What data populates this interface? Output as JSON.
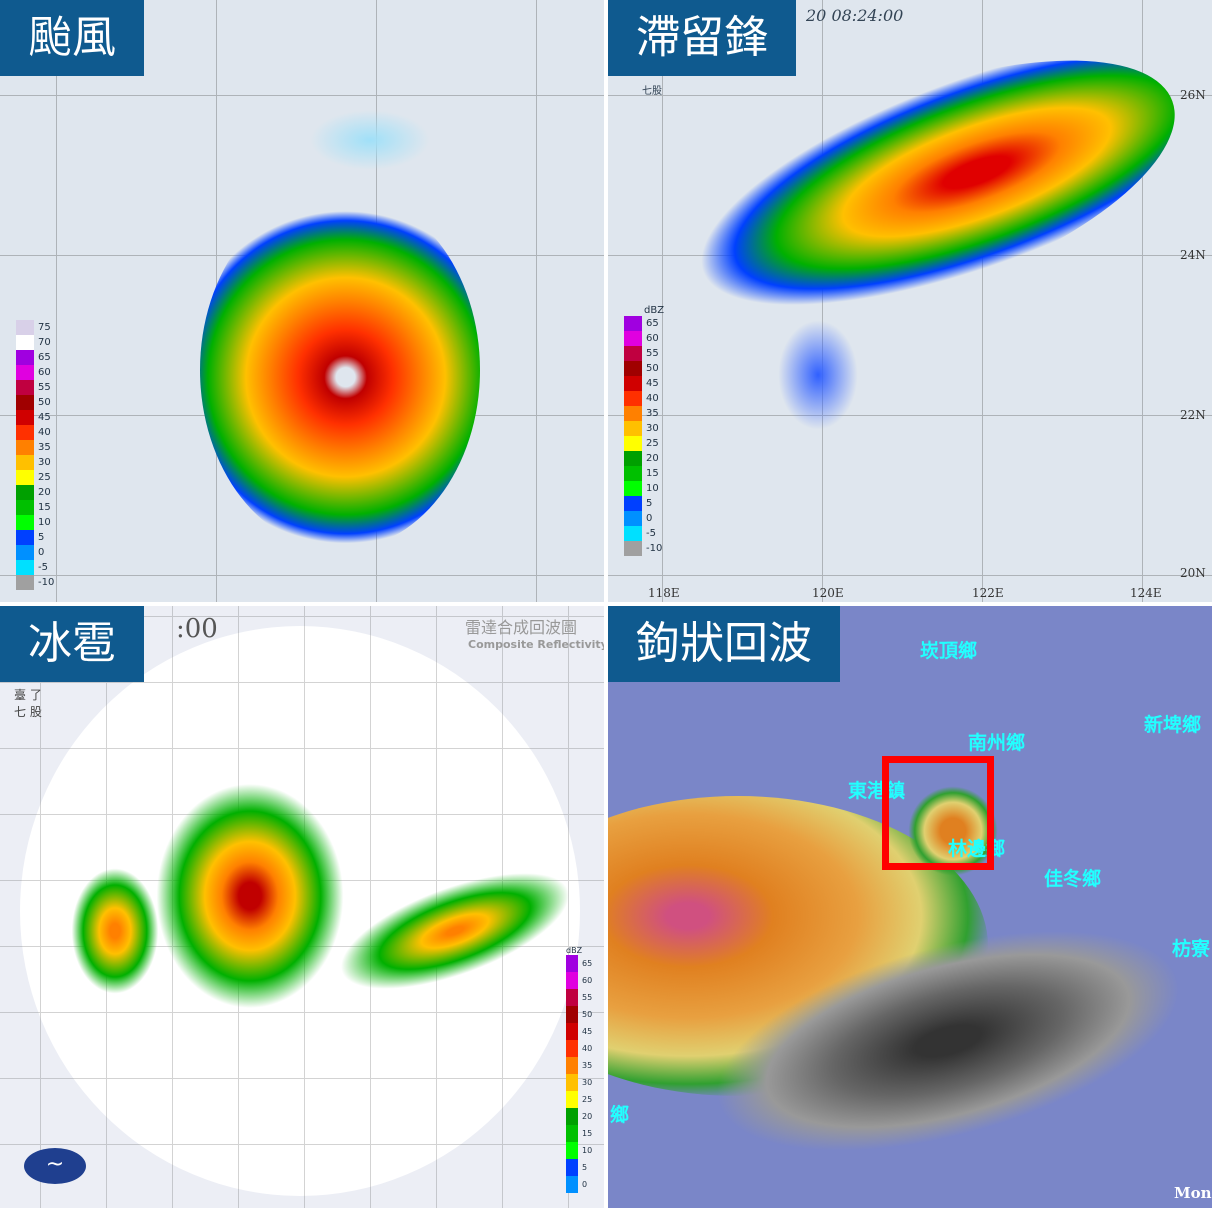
{
  "panels": [
    {
      "title": "颱風",
      "legend": [
        "75",
        "70",
        "65",
        "60",
        "55",
        "50",
        "45",
        "40",
        "35",
        "30",
        "25",
        "20",
        "15",
        "10",
        "5",
        "0",
        "-5",
        "-10"
      ]
    },
    {
      "title": "滯留鋒",
      "timestamp": "20 08:24:00",
      "station": "七股",
      "legend_unit": "dBZ",
      "legend": [
        "65",
        "60",
        "55",
        "50",
        "45",
        "40",
        "35",
        "30",
        "25",
        "20",
        "15",
        "10",
        "5",
        "0",
        "-5",
        "-10"
      ],
      "x_ticks": [
        "118E",
        "120E",
        "122E",
        "124E"
      ],
      "y_ticks": [
        "26N",
        "24N",
        "22N",
        "20N"
      ]
    },
    {
      "title": "冰雹",
      "timestamp_fragment": ":00",
      "product_zh": "雷達合成回波圖",
      "product_en": "Composite Reflectivity",
      "stations": [
        "臺 了",
        "七 股"
      ],
      "legend_unit": "dBZ",
      "legend": [
        "65",
        "60",
        "55",
        "50",
        "45",
        "40",
        "35",
        "30",
        "25",
        "20",
        "15",
        "10",
        "5",
        "0"
      ]
    },
    {
      "title": "鉤狀回波",
      "towns": [
        "崁頂鄉",
        "南州鄉",
        "新埤鄉",
        "東港鎮",
        "林邊鄉",
        "佳冬鄉",
        "枋寮",
        "鄉"
      ],
      "corner_text": "Mon"
    }
  ],
  "colors": {
    "title_bg": "#0f5a8f",
    "highlight_box": "#ff0000"
  },
  "legend_colors": [
    "#d8d0e8",
    "#ffffff",
    "#a000e0",
    "#e000e0",
    "#c00040",
    "#a00000",
    "#d00000",
    "#ff3000",
    "#ff8000",
    "#ffc000",
    "#ffff00",
    "#00a000",
    "#00c000",
    "#00ff00",
    "#0040ff",
    "#0090ff",
    "#00e0ff",
    "#a0a0a0"
  ]
}
